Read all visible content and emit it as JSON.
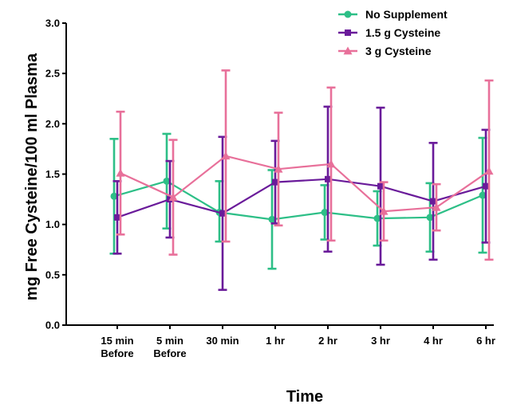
{
  "chart_data": {
    "type": "line",
    "title": "",
    "xlabel": "Time",
    "ylabel": "mg Free Cysteine/100 ml Plasma",
    "categories": [
      [
        "15 min",
        "Before"
      ],
      [
        "5 min",
        "Before"
      ],
      [
        "30 min"
      ],
      [
        "1 hr"
      ],
      [
        "2 hr"
      ],
      [
        "3 hr"
      ],
      [
        "4 hr"
      ],
      [
        "6 hr"
      ]
    ],
    "ylim": [
      0,
      3.0
    ],
    "yticks": [
      "0.0",
      "0.5",
      "1.0",
      "1.5",
      "2.0",
      "2.5",
      "3.0"
    ],
    "grid": false,
    "legend_position": "top-right",
    "series": [
      {
        "name": "No Supplement",
        "color": "#2dbf87",
        "marker": "circle",
        "values": [
          1.28,
          1.43,
          1.12,
          1.05,
          1.12,
          1.06,
          1.07,
          1.29
        ],
        "err_low": [
          0.71,
          0.96,
          0.83,
          0.56,
          0.85,
          0.79,
          0.73,
          0.72
        ],
        "err_high": [
          1.85,
          1.9,
          1.43,
          1.54,
          1.39,
          1.33,
          1.41,
          1.86
        ]
      },
      {
        "name": "1.5 g Cysteine",
        "color": "#6a1b9a",
        "marker": "square",
        "values": [
          1.07,
          1.25,
          1.11,
          1.42,
          1.45,
          1.38,
          1.23,
          1.38
        ],
        "err_low": [
          0.71,
          0.87,
          0.35,
          1.01,
          0.73,
          0.6,
          0.65,
          0.82
        ],
        "err_high": [
          1.43,
          1.63,
          1.87,
          1.83,
          2.17,
          2.16,
          1.81,
          1.94
        ]
      },
      {
        "name": "3 g Cysteine",
        "color": "#e8709a",
        "marker": "triangle",
        "values": [
          1.51,
          1.27,
          1.68,
          1.55,
          1.6,
          1.13,
          1.17,
          1.53
        ],
        "err_low": [
          0.9,
          0.7,
          0.83,
          0.99,
          0.84,
          0.84,
          0.94,
          0.65
        ],
        "err_high": [
          2.12,
          1.84,
          2.53,
          2.11,
          2.36,
          1.42,
          1.4,
          2.43
        ]
      }
    ]
  }
}
